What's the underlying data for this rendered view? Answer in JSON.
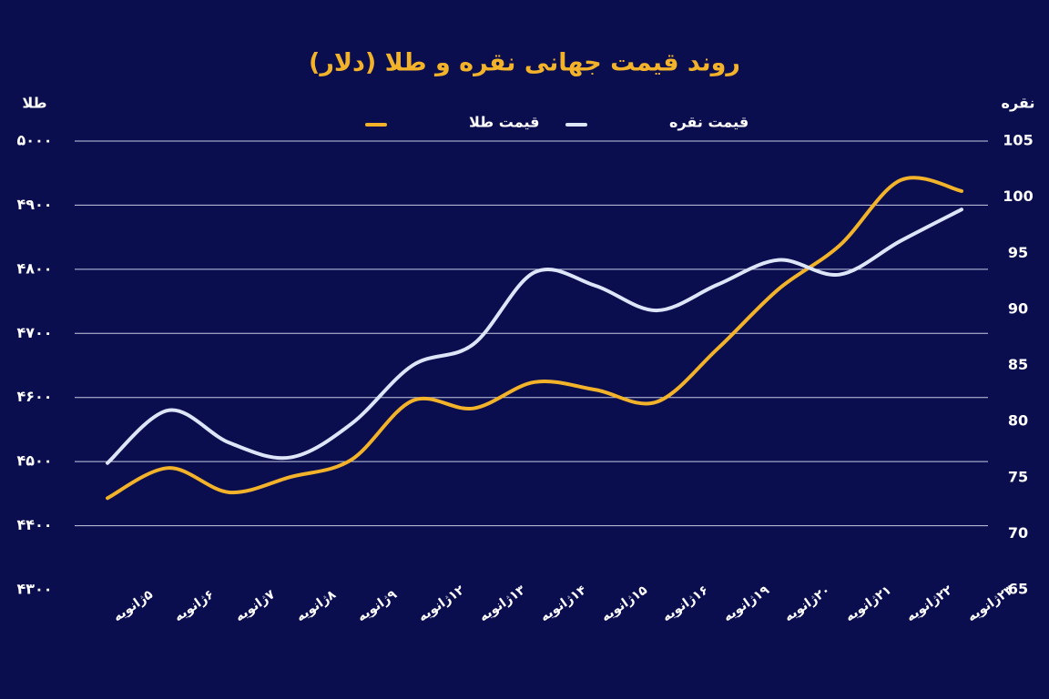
{
  "chart_data": {
    "type": "line",
    "title": "روند قیمت جهانی نقره و طلا (دلار)",
    "ylabel": "طلا",
    "y2label": "نقره",
    "categories": [
      "۵ژانویه",
      "۶ژانویه",
      "۷ژانویه",
      "۸ژانویه",
      "۹ژانویه",
      "۱۲ژانویه",
      "۱۳ژانویه",
      "۱۴ژانویه",
      "۱۵ژانویه",
      "۱۶ژانویه",
      "۱۹ژانویه",
      "۲۰ژانویه",
      "۲۱ژانویه",
      "۲۲ژانویه",
      "۲۳ژانویه"
    ],
    "series": [
      {
        "name": "قیمت طلا",
        "color": "#f2b32a",
        "values": [
          4443,
          4490,
          4452,
          4476,
          4503,
          4595,
          4583,
          4624,
          4612,
          4593,
          4676,
          4769,
          4837,
          4939,
          4922
        ]
      },
      {
        "name": "قیمت نقره",
        "color": "#dde5f8",
        "axis": "y2",
        "values": [
          76.3,
          81.0,
          78.1,
          76.8,
          79.8,
          85.0,
          86.9,
          93.3,
          92.1,
          89.9,
          92.2,
          94.4,
          93.1,
          96.1,
          98.9
        ]
      }
    ],
    "ylim": [
      4300,
      5000
    ],
    "yticks": [
      {
        "value": 4300,
        "label": "۴۳۰۰"
      },
      {
        "value": 4400,
        "label": "۴۴۰۰"
      },
      {
        "value": 4500,
        "label": "۴۵۰۰"
      },
      {
        "value": 4600,
        "label": "۴۶۰۰"
      },
      {
        "value": 4700,
        "label": "۴۷۰۰"
      },
      {
        "value": 4800,
        "label": "۴۸۰۰"
      },
      {
        "value": 4900,
        "label": "۴۹۰۰"
      },
      {
        "value": 5000,
        "label": "۵۰۰۰"
      }
    ],
    "y2lim": [
      65,
      105
    ],
    "y2ticks": [
      65,
      70,
      75,
      80,
      85,
      90,
      95,
      100,
      105
    ],
    "grid": true
  }
}
